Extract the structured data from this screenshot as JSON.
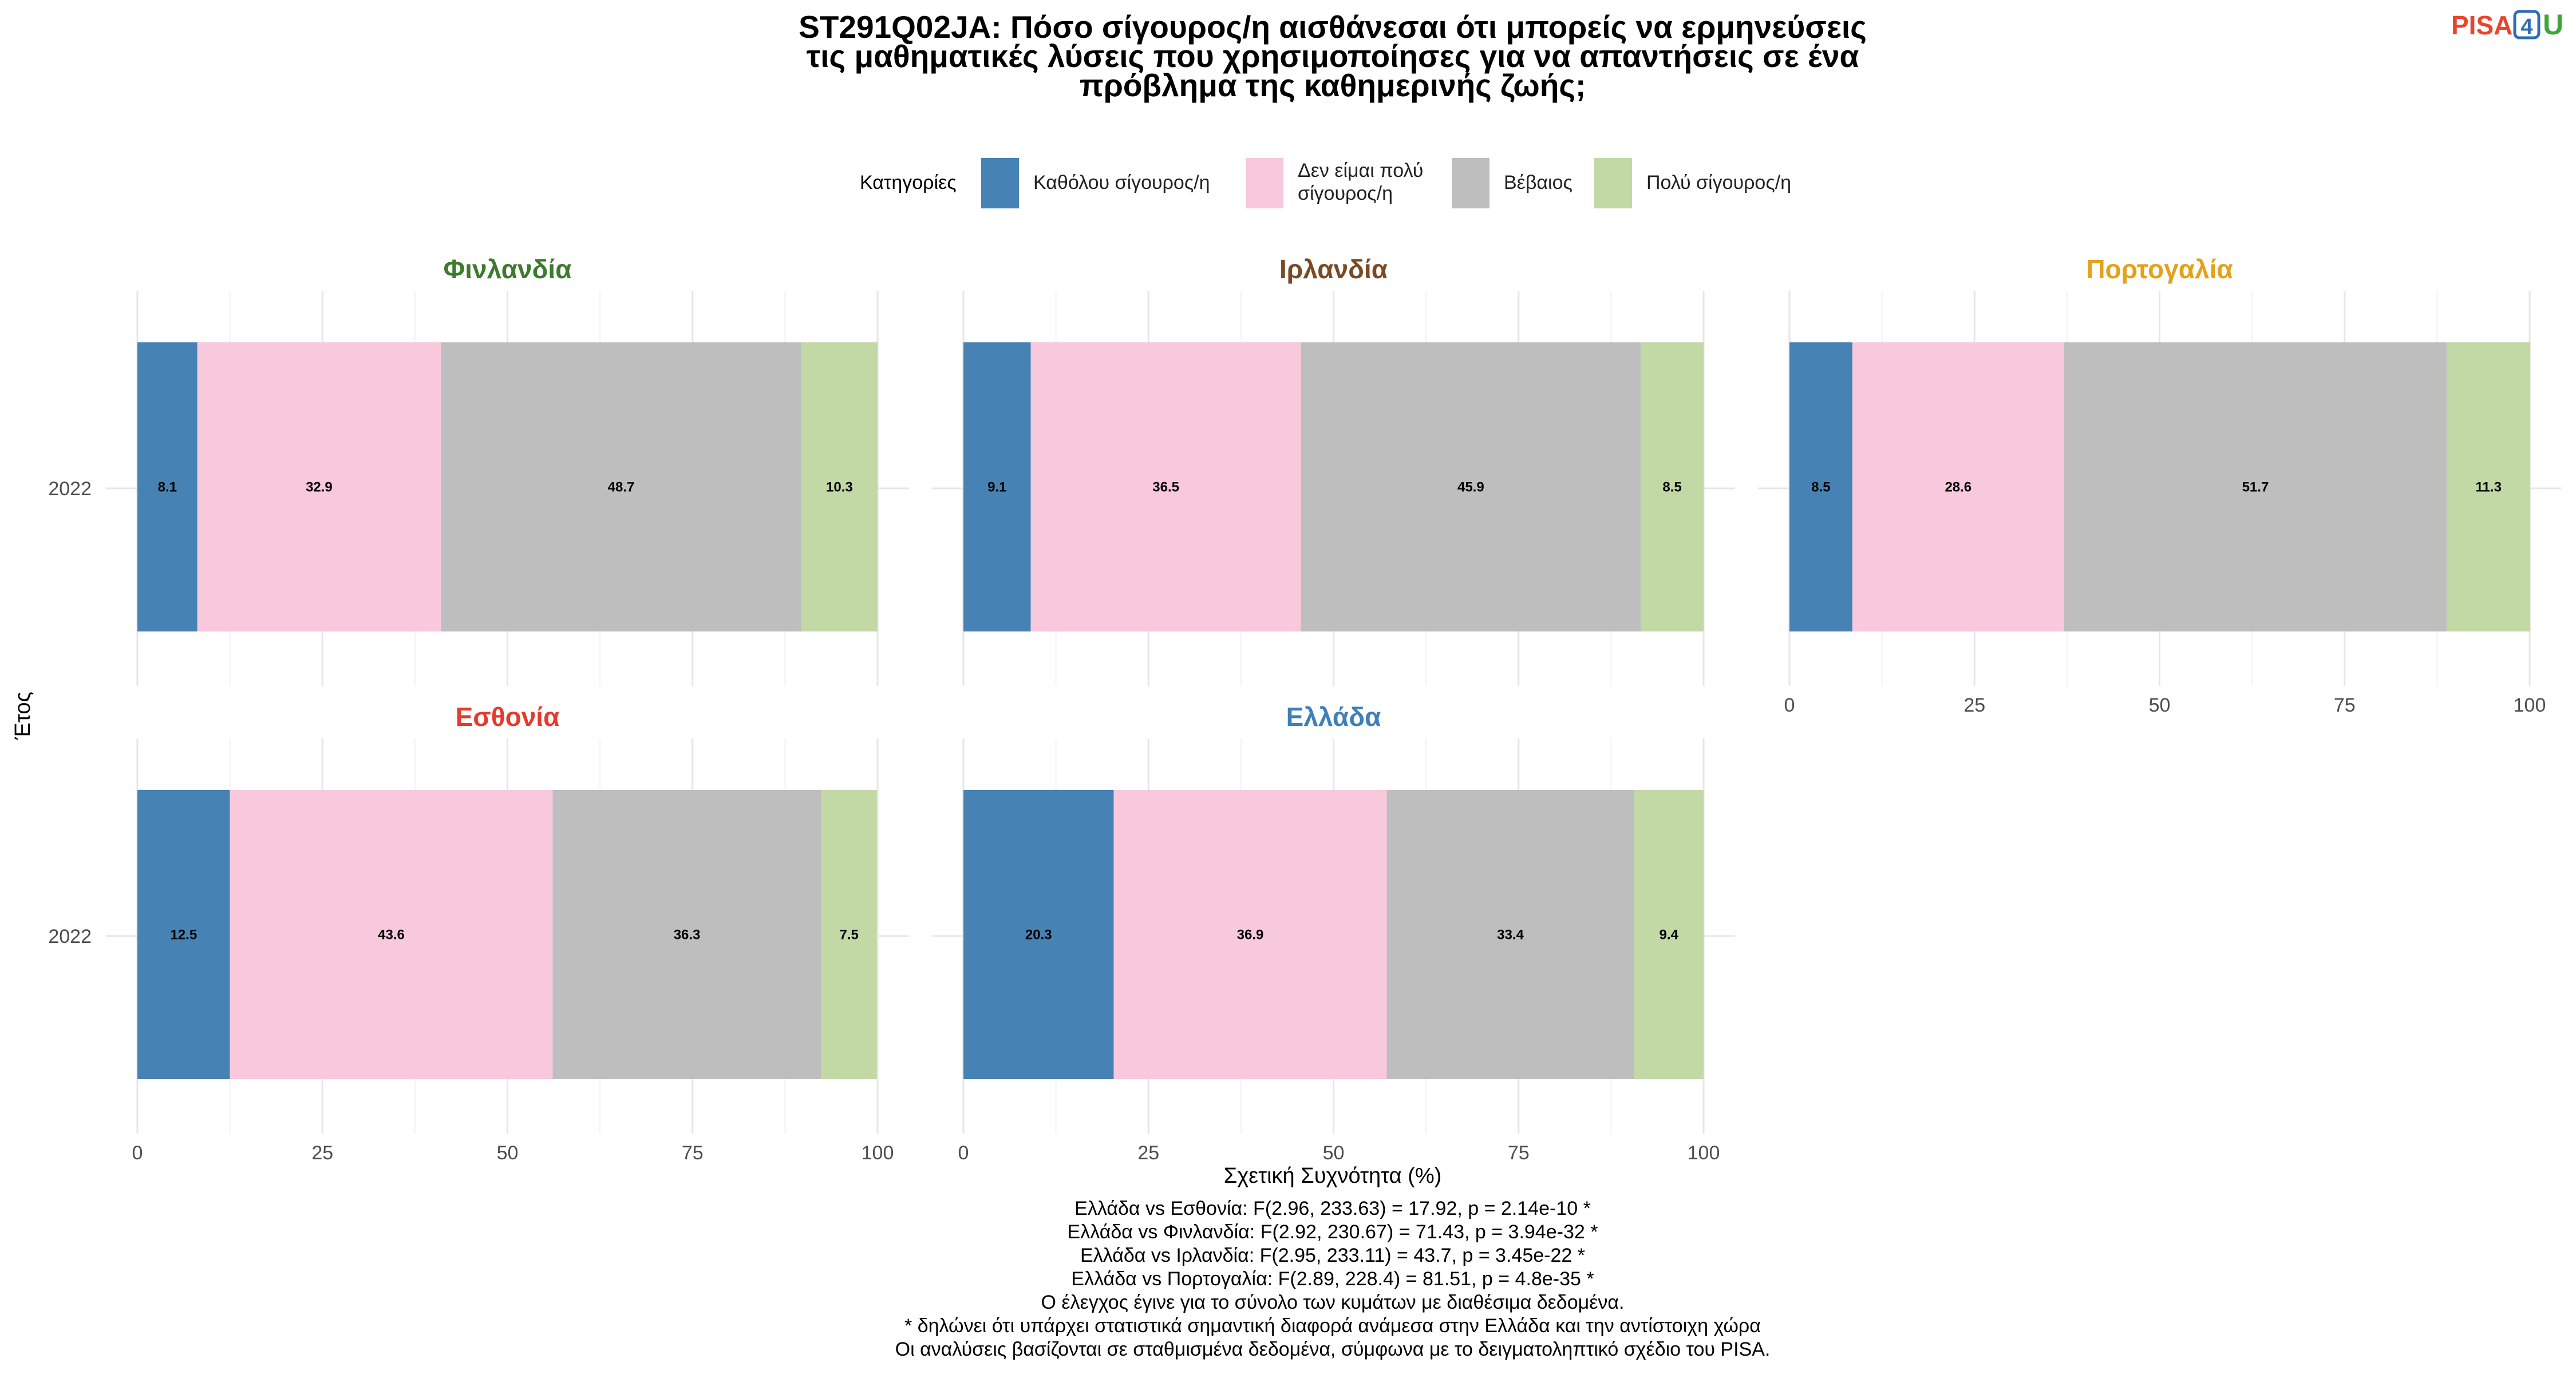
{
  "logo": {
    "text_pisa": "PISA",
    "text_4": "4",
    "text_u": "U",
    "colors": {
      "pisa": "#e8452c",
      "four": "#2f6db3",
      "u": "#3fa535"
    }
  },
  "chart_data": {
    "type": "bar",
    "orientation": "horizontal-stacked",
    "title_lines": [
      "ST291Q02JA: Πόσο σίγουρος/η αισθάνεσαι ότι μπορείς να ερμηνεύσεις",
      "τις μαθηματικές λύσεις που χρησιμοποίησες για να απαντήσεις σε ένα",
      "πρόβλημα της καθημερινής ζωής;"
    ],
    "legend": {
      "title": "Κατηγορίες",
      "position": "top",
      "items": [
        {
          "lines": [
            "Καθόλου σίγουρος/η"
          ],
          "color": "#4682b4"
        },
        {
          "lines": [
            "Δεν είμαι πολύ",
            "σίγουρος/η"
          ],
          "color": "#f8c8dc"
        },
        {
          "lines": [
            "Βέβαιος"
          ],
          "color": "#bebebe"
        },
        {
          "lines": [
            "Πολύ σίγουρος/η"
          ],
          "color": "#c2d8a5"
        }
      ]
    },
    "series_names": [
      "Καθόλου σίγουρος/η",
      "Δεν είμαι πολύ σίγουρος/η",
      "Βέβαιος",
      "Πολύ σίγουρος/η"
    ],
    "xlabel": "Σχετική Συχνότητα (%)",
    "ylabel": "Έτος",
    "xlim": [
      0,
      100
    ],
    "xticks": [
      0,
      25,
      50,
      75,
      100
    ],
    "grid": true,
    "panels": [
      {
        "name": "Φινλανδία",
        "color": "#3d7a2e",
        "year": "2022",
        "values": [
          8.1,
          32.9,
          48.7,
          10.3
        ]
      },
      {
        "name": "Ιρλανδία",
        "color": "#7a4a24",
        "year": "2022",
        "values": [
          9.1,
          36.5,
          45.9,
          8.5
        ]
      },
      {
        "name": "Πορτογαλία",
        "color": "#e3a21a",
        "year": "2022",
        "values": [
          8.5,
          28.6,
          51.7,
          11.3
        ]
      },
      {
        "name": "Εσθονία",
        "color": "#e63a2e",
        "year": "2022",
        "values": [
          12.5,
          43.6,
          36.3,
          7.5
        ]
      },
      {
        "name": "Ελλάδα",
        "color": "#3f7fba",
        "year": "2022",
        "values": [
          20.3,
          36.9,
          33.4,
          9.4
        ]
      }
    ],
    "caption_lines": [
      "Ελλάδα vs Εσθονία: F(2.96, 233.63) = 17.92, p = 2.14e-10 *",
      "Ελλάδα vs Φινλανδία: F(2.92, 230.67) = 71.43, p = 3.94e-32 *",
      "Ελλάδα vs Ιρλανδία: F(2.95, 233.11) = 43.7, p = 3.45e-22 *",
      "Ελλάδα vs Πορτογαλία: F(2.89, 228.4) = 81.51, p = 4.8e-35 *",
      "Ο έλεγχος έγινε για το σύνολο των κυμάτων με διαθέσιμα δεδομένα.",
      "* δηλώνει ότι υπάρχει στατιστικά σημαντική διαφορά ανάμεσα στην Ελλάδα και την αντίστοιχη χώρα",
      "Οι αναλύσεις βασίζονται σε σταθμισμένα δεδομένα, σύμφωνα με το δειγματοληπτικό σχέδιο του PISA."
    ]
  }
}
